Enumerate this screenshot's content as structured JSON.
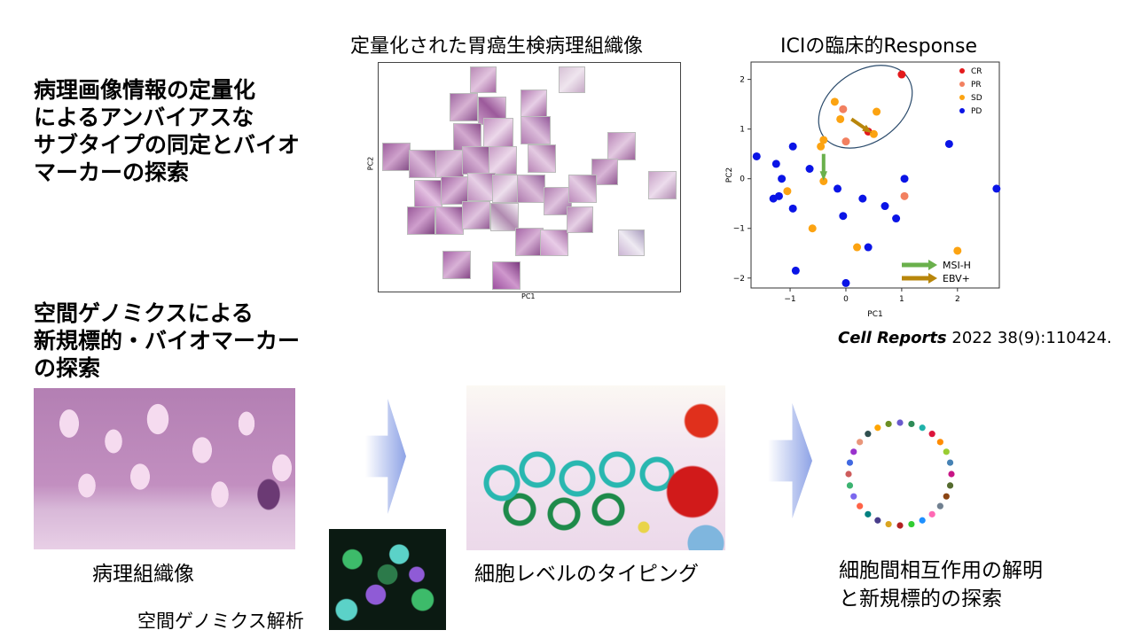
{
  "headings": {
    "top": "病理画像情報の定量化\nによるアンバイアスな\nサブタイプの同定とバイオ\nマーカーの探索",
    "middle": "空間ゲノミクスによる\n新規標的・バイオマーカー\nの探索"
  },
  "tsne_panel": {
    "title": "定量化された胃癌生検病理組織像",
    "xlabel": "PC1",
    "ylabel": "PC2"
  },
  "scatter_panel": {
    "title": "ICIの臨床的Response",
    "xlabel": "PC1",
    "ylabel": "PC2",
    "legend": [
      "CR",
      "PR",
      "SD",
      "PD"
    ],
    "arrow_labels": [
      "MSI-H",
      "EBV+"
    ]
  },
  "citation": {
    "journal": "Cell Reports",
    "details": " 2022 38(9):110424."
  },
  "bottom_labels": {
    "histology": "病理組織像",
    "spatial": "空間ゲノミクス解析",
    "typing": "細胞レベルのタイピング",
    "interaction": "細胞間相互作用の解明\nと新規標的の探索"
  },
  "colors": {
    "CR": "#e41a1c",
    "PR": "#f28060",
    "SD": "#fca311",
    "PD": "#0a14e6",
    "MSI": "#6ab04c",
    "EBV": "#b8860b",
    "arrow": "#8ea3e6"
  },
  "chart_data": {
    "type": "scatter",
    "title": "ICIの臨床的Response",
    "xlabel": "PC1",
    "ylabel": "PC2",
    "xlim": [
      -1.7,
      2.75
    ],
    "ylim": [
      -2.2,
      2.35
    ],
    "xticks": [
      -1,
      0,
      1,
      2
    ],
    "yticks": [
      -2,
      -1,
      0,
      1,
      2
    ],
    "legend_position": "top-right",
    "series": [
      {
        "name": "CR",
        "color": "#e41a1c",
        "points": [
          [
            1.0,
            2.1
          ],
          [
            0.4,
            0.95
          ]
        ]
      },
      {
        "name": "PR",
        "color": "#f28060",
        "points": [
          [
            -0.05,
            1.4
          ],
          [
            0.0,
            0.75
          ],
          [
            1.05,
            -0.35
          ]
        ]
      },
      {
        "name": "SD",
        "color": "#fca311",
        "points": [
          [
            -0.2,
            1.55
          ],
          [
            -0.1,
            1.2
          ],
          [
            0.55,
            1.35
          ],
          [
            0.5,
            0.9
          ],
          [
            -0.4,
            0.78
          ],
          [
            -0.45,
            0.65
          ],
          [
            -0.4,
            -0.05
          ],
          [
            -1.05,
            -0.25
          ],
          [
            -0.6,
            -1.0
          ],
          [
            0.2,
            -1.38
          ],
          [
            2.0,
            -1.45
          ]
        ]
      },
      {
        "name": "PD",
        "color": "#0a14e6",
        "points": [
          [
            -1.6,
            0.45
          ],
          [
            -1.25,
            0.3
          ],
          [
            -0.95,
            0.65
          ],
          [
            -0.65,
            0.2
          ],
          [
            -1.15,
            0.0
          ],
          [
            -1.2,
            -0.35
          ],
          [
            -1.3,
            -0.4
          ],
          [
            -0.95,
            -0.6
          ],
          [
            -0.15,
            -0.2
          ],
          [
            0.3,
            -0.4
          ],
          [
            0.7,
            -0.55
          ],
          [
            1.05,
            0.0
          ],
          [
            1.85,
            0.7
          ],
          [
            2.7,
            -0.2
          ],
          [
            -0.05,
            -0.75
          ],
          [
            0.9,
            -0.8
          ],
          [
            0.4,
            -1.38
          ],
          [
            -0.9,
            -1.85
          ],
          [
            0.0,
            -2.1
          ]
        ]
      }
    ],
    "annotations": [
      {
        "label": "MSI-H",
        "color": "#6ab04c",
        "from": [
          -0.4,
          0.5
        ],
        "to": [
          -0.4,
          0.05
        ]
      },
      {
        "label": "EBV+",
        "color": "#b8860b",
        "from": [
          0.1,
          1.2
        ],
        "to": [
          0.4,
          0.97
        ]
      }
    ]
  }
}
